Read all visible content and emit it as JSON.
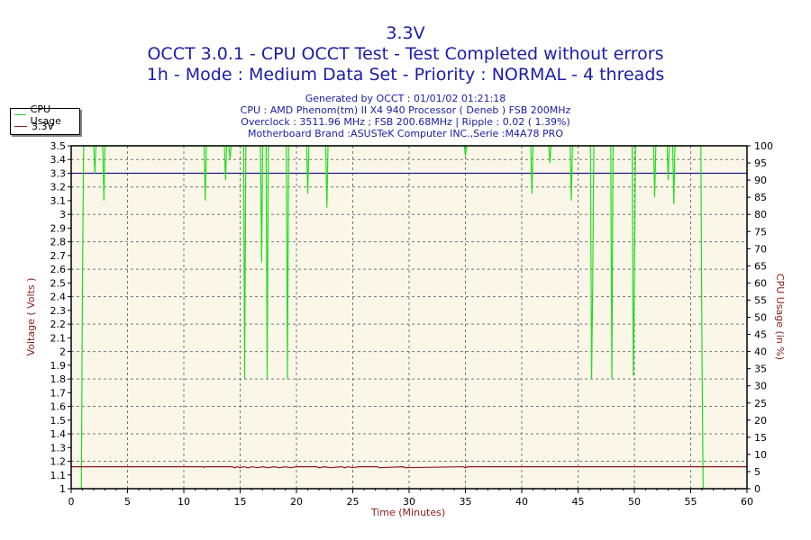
{
  "chart_data": {
    "type": "line",
    "title": "3.3V",
    "subtitles": [
      "OCCT 3.0.1 - CPU OCCT Test - Test Completed without errors",
      "1h - Mode : Medium Data Set - Priority : NORMAL - 4 threads"
    ],
    "info_lines": [
      "Generated by OCCT : 01/01/02 01:21:18",
      "CPU : AMD Phenom(tm) II X4 940 Processor ( Deneb ) FSB 200MHz",
      "Overclock : 3511.96 MHz ; FSB 200.68MHz | Ripple : 0.02 ( 1.39%)",
      "Motherboard Brand :ASUSTeK Computer INC.,Serie :M4A78 PRO"
    ],
    "xlabel": "Time (Minutes)",
    "ylabel": "Voltage ( Volts )",
    "y2label": "CPU Usage (in %)",
    "xlim": [
      0,
      60
    ],
    "ylim": [
      1,
      3.5
    ],
    "y2lim": [
      0,
      100
    ],
    "xticks": [
      "0",
      "5",
      "10",
      "15",
      "20",
      "25",
      "30",
      "35",
      "40",
      "45",
      "50",
      "55",
      "60"
    ],
    "yticks": [
      "1",
      "1.1",
      "1.2",
      "1.3",
      "1.4",
      "1.5",
      "1.6",
      "1.7",
      "1.8",
      "1.9",
      "2",
      "2.1",
      "2.2",
      "2.3",
      "2.4",
      "2.5",
      "2.6",
      "2.7",
      "2.8",
      "2.9",
      "3",
      "3.1",
      "3.2",
      "3.3",
      "3.4",
      "3.5"
    ],
    "y2ticks": [
      "0",
      "5",
      "10",
      "15",
      "20",
      "25",
      "30",
      "35",
      "40",
      "45",
      "50",
      "55",
      "60",
      "65",
      "70",
      "75",
      "80",
      "85",
      "90",
      "95",
      "100"
    ],
    "grid": true,
    "reference_line": 3.3,
    "legend": {
      "position": "top-left",
      "entries": [
        "CPU Usage",
        "3.3V"
      ]
    },
    "colors": {
      "cpu": "#22dd22",
      "voltage": "#8b1a1a",
      "ref": "#1a1a8c",
      "plot_bg": "#fbf7e8",
      "text": "#1c1ca8",
      "axis_label": "#8b1a1a"
    },
    "series": [
      {
        "name": "CPU Usage",
        "axis": "right",
        "x": [
          0.9,
          1.0,
          1.1,
          2.0,
          2.1,
          2.2,
          2.8,
          2.9,
          3.0,
          11.8,
          11.9,
          12.0,
          13.6,
          13.7,
          13.8,
          14.0,
          14.1,
          14.2,
          15.3,
          15.4,
          15.5,
          16.8,
          16.9,
          17.0,
          17.3,
          17.4,
          17.5,
          19.1,
          19.2,
          19.3,
          20.9,
          21.0,
          21.1,
          22.6,
          22.7,
          22.8,
          34.9,
          35.0,
          35.1,
          40.8,
          40.9,
          41.0,
          42.4,
          42.5,
          42.6,
          44.3,
          44.4,
          44.5,
          46.1,
          46.2,
          46.3,
          46.4,
          47.9,
          48.0,
          48.1,
          49.8,
          49.9,
          50.0,
          50.1,
          51.7,
          51.8,
          51.9,
          52.9,
          53.0,
          53.1,
          53.4,
          53.5,
          53.6,
          55.9,
          56.0,
          56.1
        ],
        "y": [
          0,
          60,
          100,
          100,
          92,
          100,
          100,
          84,
          100,
          100,
          84,
          100,
          100,
          90,
          100,
          100,
          96,
          100,
          100,
          32,
          100,
          100,
          66,
          100,
          100,
          32,
          100,
          100,
          32,
          100,
          100,
          86,
          100,
          100,
          82,
          100,
          100,
          97,
          100,
          100,
          86,
          100,
          100,
          95,
          100,
          100,
          84,
          100,
          100,
          32,
          60,
          100,
          100,
          32,
          100,
          100,
          33,
          60,
          100,
          100,
          85,
          100,
          100,
          90,
          100,
          100,
          83,
          100,
          100,
          40,
          0
        ]
      },
      {
        "name": "3.3V",
        "axis": "left",
        "x": [
          0,
          11.7,
          11.8,
          11.9,
          14.3,
          14.5,
          14.7,
          15.0,
          15.3,
          15.7,
          16.1,
          16.5,
          17.0,
          17.5,
          18.0,
          18.5,
          19.0,
          19.5,
          20.0,
          21.8,
          22.0,
          22.5,
          23.0,
          24.0,
          24.3,
          24.6,
          25.0,
          25.5,
          27.2,
          27.3,
          29.5,
          29.6,
          34.8,
          35.0,
          35.2,
          60
        ],
        "y": [
          1.16,
          1.16,
          1.155,
          1.16,
          1.16,
          1.152,
          1.16,
          1.152,
          1.16,
          1.153,
          1.16,
          1.153,
          1.16,
          1.153,
          1.16,
          1.153,
          1.16,
          1.153,
          1.16,
          1.16,
          1.153,
          1.16,
          1.153,
          1.16,
          1.153,
          1.16,
          1.153,
          1.16,
          1.16,
          1.153,
          1.16,
          1.153,
          1.16,
          1.152,
          1.16,
          1.16
        ]
      }
    ]
  }
}
